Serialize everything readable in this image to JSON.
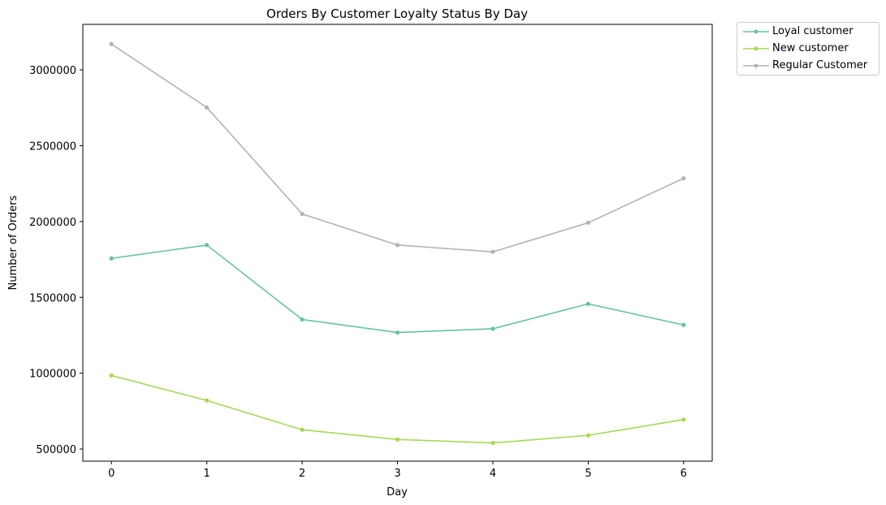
{
  "chart_data": {
    "type": "line",
    "title": "Orders By Customer Loyalty Status By Day",
    "xlabel": "Day",
    "ylabel": "Number of Orders",
    "x": [
      0,
      1,
      2,
      3,
      4,
      5,
      6
    ],
    "xticks": [
      "0",
      "1",
      "2",
      "3",
      "4",
      "5",
      "6"
    ],
    "yticks": [
      "500000",
      "1000000",
      "1500000",
      "2000000",
      "2500000",
      "3000000"
    ],
    "ytick_values": [
      500000,
      1000000,
      1500000,
      2000000,
      2500000,
      3000000
    ],
    "xlim": [
      -0.3,
      6.3
    ],
    "ylim": [
      420000,
      3300000
    ],
    "grid": false,
    "legend_position": "outside-top-right",
    "series": [
      {
        "name": "Loyal customer",
        "color": "#66c2a5",
        "values": [
          1757000,
          1845000,
          1354000,
          1268000,
          1293000,
          1457000,
          1318000
        ]
      },
      {
        "name": "New customer",
        "color": "#a6d854",
        "values": [
          985000,
          820000,
          627000,
          563000,
          540000,
          590000,
          694000
        ]
      },
      {
        "name": "Regular Customer",
        "color": "#b3b3b3",
        "values": [
          3170000,
          2752000,
          2050000,
          1845000,
          1800000,
          1992000,
          2285000
        ]
      }
    ]
  }
}
